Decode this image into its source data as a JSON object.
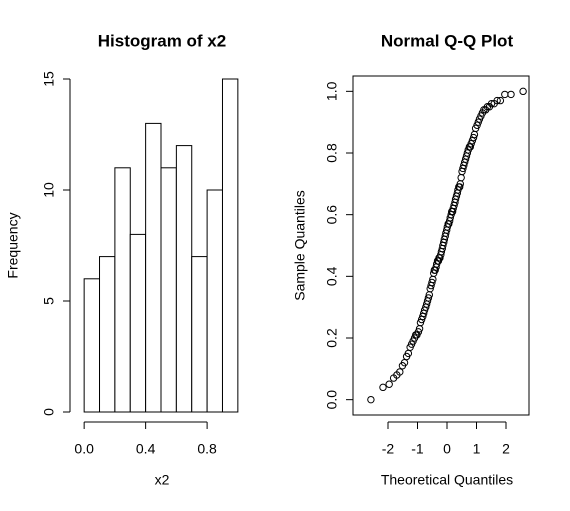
{
  "chart_data": [
    {
      "type": "histogram",
      "title": "Histogram of x2",
      "x_label": "x2",
      "y_label": "Frequency",
      "bins": [
        0,
        0.1,
        0.2,
        0.3,
        0.4,
        0.5,
        0.6,
        0.7,
        0.8,
        0.9,
        1.0
      ],
      "values": [
        6,
        7,
        11,
        8,
        13,
        11,
        12,
        7,
        10,
        15
      ],
      "color": "#ffffff",
      "xlim": [
        -0.04,
        1.04
      ],
      "ylim": [
        0,
        15
      ],
      "xticks": [
        {
          "value": 0,
          "label": "0.0"
        },
        0.4,
        0.8
      ],
      "yticks": [
        0,
        5,
        10,
        15
      ]
    },
    {
      "type": "scatter",
      "title": "Normal Q-Q Plot",
      "x_label": "Theoretical Quantiles",
      "y_label": "Sample Quantiles",
      "x": [
        -2.58,
        -2.17,
        -1.96,
        -1.81,
        -1.7,
        -1.6,
        -1.51,
        -1.44,
        -1.37,
        -1.31,
        -1.25,
        -1.2,
        -1.15,
        -1.1,
        -1.06,
        -1.02,
        -0.97,
        -0.93,
        -0.9,
        -0.86,
        -0.82,
        -0.79,
        -0.76,
        -0.72,
        -0.69,
        -0.66,
        -0.63,
        -0.6,
        -0.57,
        -0.54,
        -0.51,
        -0.48,
        -0.45,
        -0.43,
        -0.4,
        -0.37,
        -0.35,
        -0.32,
        -0.29,
        -0.27,
        -0.24,
        -0.21,
        -0.19,
        -0.16,
        -0.14,
        -0.11,
        -0.09,
        -0.06,
        -0.04,
        -0.01,
        0.01,
        0.04,
        0.06,
        0.09,
        0.11,
        0.14,
        0.16,
        0.19,
        0.21,
        0.24,
        0.27,
        0.29,
        0.32,
        0.35,
        0.37,
        0.4,
        0.43,
        0.45,
        0.48,
        0.51,
        0.54,
        0.57,
        0.6,
        0.63,
        0.66,
        0.69,
        0.72,
        0.76,
        0.79,
        0.82,
        0.86,
        0.9,
        0.93,
        0.97,
        1.02,
        1.06,
        1.1,
        1.15,
        1.2,
        1.25,
        1.31,
        1.37,
        1.44,
        1.51,
        1.6,
        1.7,
        1.81,
        1.96,
        2.17,
        2.58
      ],
      "values": [
        0.0,
        0.04,
        0.05,
        0.07,
        0.08,
        0.09,
        0.11,
        0.12,
        0.14,
        0.15,
        0.17,
        0.18,
        0.19,
        0.2,
        0.21,
        0.21,
        0.22,
        0.23,
        0.25,
        0.26,
        0.27,
        0.28,
        0.29,
        0.3,
        0.31,
        0.32,
        0.33,
        0.34,
        0.36,
        0.37,
        0.38,
        0.39,
        0.41,
        0.42,
        0.42,
        0.43,
        0.44,
        0.45,
        0.45,
        0.46,
        0.46,
        0.47,
        0.48,
        0.49,
        0.5,
        0.51,
        0.52,
        0.53,
        0.54,
        0.55,
        0.56,
        0.57,
        0.57,
        0.58,
        0.59,
        0.6,
        0.61,
        0.61,
        0.62,
        0.63,
        0.64,
        0.65,
        0.66,
        0.67,
        0.68,
        0.69,
        0.69,
        0.7,
        0.72,
        0.74,
        0.75,
        0.76,
        0.77,
        0.78,
        0.79,
        0.8,
        0.81,
        0.82,
        0.82,
        0.83,
        0.84,
        0.85,
        0.86,
        0.88,
        0.89,
        0.9,
        0.91,
        0.92,
        0.93,
        0.94,
        0.94,
        0.95,
        0.95,
        0.96,
        0.96,
        0.97,
        0.97,
        0.99,
        0.99,
        1.0
      ],
      "color": "#000000",
      "xlim": [
        -2.78,
        2.78
      ],
      "ylim": [
        -0.04,
        1.04
      ],
      "xticks": [
        -2,
        -1,
        0,
        1,
        2
      ],
      "yticks": [
        {
          "value": 0,
          "label": "0.0"
        },
        0.2,
        0.4,
        0.6,
        0.8,
        {
          "value": 1,
          "label": "1.0"
        }
      ]
    }
  ]
}
